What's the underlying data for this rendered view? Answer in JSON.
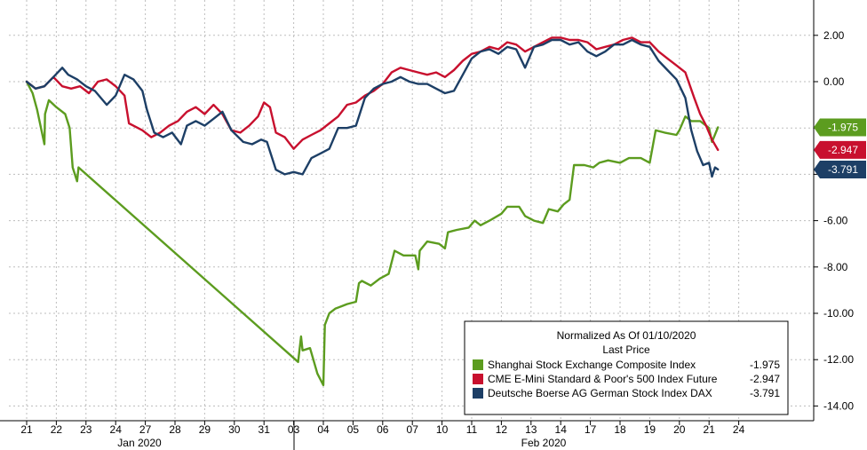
{
  "chart_data": {
    "type": "line",
    "ylim": [
      -14.5,
      3.5
    ],
    "y_ticks": [
      "2.00",
      "0.00",
      "-2.00",
      "-4.00",
      "-6.00",
      "-8.00",
      "-10.00",
      "-12.00",
      "-14.00"
    ],
    "y_tick_values": [
      2,
      0,
      -2,
      -4,
      -6,
      -8,
      -10,
      -12,
      -14
    ],
    "x_tick_labels": [
      "21",
      "22",
      "23",
      "24",
      "27",
      "28",
      "29",
      "30",
      "31",
      "03",
      "04",
      "05",
      "06",
      "07",
      "10",
      "11",
      "12",
      "13",
      "14",
      "17",
      "18",
      "19",
      "20",
      "21",
      "24"
    ],
    "month_labels": [
      "Jan 2020",
      "Feb 2020"
    ],
    "grid": true,
    "legend": {
      "placement": "bottom-right",
      "title_line1": "Normalized As Of 01/10/2020",
      "title_line2": "Last Price",
      "entries": [
        {
          "label": "Shanghai Stock Exchange Composite Index",
          "value": "-1.975"
        },
        {
          "label": "CME E-Mini Standard & Poor's 500 Index Future",
          "value": "-2.947"
        },
        {
          "label": "Deutsche Boerse AG German Stock Index DAX",
          "value": "-3.791"
        }
      ]
    },
    "series": [
      {
        "name": "Shanghai Stock Exchange Composite Index",
        "color": "#5c9c1f",
        "last_value": "-1.975",
        "points": [
          [
            0,
            0
          ],
          [
            0.2,
            -0.5
          ],
          [
            0.35,
            -1.2
          ],
          [
            0.6,
            -2.7
          ],
          [
            0.62,
            -1.4
          ],
          [
            0.75,
            -0.8
          ],
          [
            1.0,
            -1.1
          ],
          [
            1.3,
            -1.4
          ],
          [
            1.45,
            -2.0
          ],
          [
            1.55,
            -3.7
          ],
          [
            1.7,
            -4.3
          ],
          [
            1.75,
            -3.7
          ],
          [
            9.15,
            -12.1
          ],
          [
            9.25,
            -11.0
          ],
          [
            9.3,
            -11.6
          ],
          [
            9.55,
            -11.5
          ],
          [
            9.8,
            -12.6
          ],
          [
            10.0,
            -13.1
          ],
          [
            10.05,
            -10.5
          ],
          [
            10.2,
            -10.0
          ],
          [
            10.4,
            -9.8
          ],
          [
            10.6,
            -9.7
          ],
          [
            10.8,
            -9.6
          ],
          [
            11.1,
            -9.5
          ],
          [
            11.2,
            -8.7
          ],
          [
            11.3,
            -8.6
          ],
          [
            11.6,
            -8.8
          ],
          [
            11.9,
            -8.5
          ],
          [
            12.2,
            -8.3
          ],
          [
            12.4,
            -7.3
          ],
          [
            12.7,
            -7.5
          ],
          [
            13.1,
            -7.5
          ],
          [
            13.2,
            -8.1
          ],
          [
            13.25,
            -7.3
          ],
          [
            13.5,
            -6.9
          ],
          [
            13.9,
            -7.0
          ],
          [
            14.1,
            -7.2
          ],
          [
            14.2,
            -6.5
          ],
          [
            14.5,
            -6.4
          ],
          [
            14.9,
            -6.3
          ],
          [
            15.1,
            -6.0
          ],
          [
            15.3,
            -6.2
          ],
          [
            15.6,
            -6.0
          ],
          [
            16.0,
            -5.7
          ],
          [
            16.2,
            -5.4
          ],
          [
            16.6,
            -5.4
          ],
          [
            16.8,
            -5.8
          ],
          [
            17.1,
            -6.0
          ],
          [
            17.4,
            -6.1
          ],
          [
            17.6,
            -5.5
          ],
          [
            17.9,
            -5.6
          ],
          [
            18.1,
            -5.3
          ],
          [
            18.3,
            -5.1
          ],
          [
            18.45,
            -3.6
          ],
          [
            18.8,
            -3.6
          ],
          [
            19.1,
            -3.7
          ],
          [
            19.3,
            -3.5
          ],
          [
            19.6,
            -3.4
          ],
          [
            20.0,
            -3.5
          ],
          [
            20.3,
            -3.3
          ],
          [
            20.7,
            -3.3
          ],
          [
            21.0,
            -3.5
          ],
          [
            21.2,
            -2.1
          ],
          [
            21.5,
            -2.2
          ],
          [
            21.9,
            -2.3
          ],
          [
            22.0,
            -2.1
          ],
          [
            22.2,
            -1.5
          ],
          [
            22.4,
            -1.7
          ],
          [
            22.7,
            -1.7
          ],
          [
            23.0,
            -2.0
          ],
          [
            23.1,
            -2.6
          ],
          [
            23.3,
            -1.975
          ]
        ]
      },
      {
        "name": "CME E-Mini Standard & Poor's 500 Index Future",
        "color": "#c8102e",
        "last_value": "-2.947",
        "points": [
          [
            0,
            0
          ],
          [
            0.3,
            -0.3
          ],
          [
            0.6,
            -0.2
          ],
          [
            0.9,
            0.2
          ],
          [
            1.2,
            -0.2
          ],
          [
            1.5,
            -0.3
          ],
          [
            1.8,
            -0.2
          ],
          [
            2.1,
            -0.5
          ],
          [
            2.4,
            0.0
          ],
          [
            2.7,
            0.1
          ],
          [
            3.0,
            -0.2
          ],
          [
            3.3,
            -0.6
          ],
          [
            3.45,
            -1.8
          ],
          [
            3.6,
            -1.9
          ],
          [
            3.9,
            -2.1
          ],
          [
            4.2,
            -2.4
          ],
          [
            4.5,
            -2.2
          ],
          [
            4.8,
            -1.9
          ],
          [
            5.1,
            -1.7
          ],
          [
            5.4,
            -1.3
          ],
          [
            5.7,
            -1.1
          ],
          [
            6.0,
            -1.4
          ],
          [
            6.3,
            -1.0
          ],
          [
            6.6,
            -1.4
          ],
          [
            6.9,
            -2.1
          ],
          [
            7.2,
            -2.2
          ],
          [
            7.5,
            -1.9
          ],
          [
            7.8,
            -1.5
          ],
          [
            8.0,
            -0.9
          ],
          [
            8.2,
            -1.1
          ],
          [
            8.4,
            -2.2
          ],
          [
            8.7,
            -2.4
          ],
          [
            9.0,
            -2.9
          ],
          [
            9.3,
            -2.5
          ],
          [
            9.6,
            -2.3
          ],
          [
            9.9,
            -2.1
          ],
          [
            10.2,
            -1.8
          ],
          [
            10.5,
            -1.5
          ],
          [
            10.8,
            -1.0
          ],
          [
            11.1,
            -0.9
          ],
          [
            11.4,
            -0.6
          ],
          [
            11.7,
            -0.4
          ],
          [
            12.0,
            -0.1
          ],
          [
            12.3,
            0.4
          ],
          [
            12.6,
            0.6
          ],
          [
            12.9,
            0.5
          ],
          [
            13.2,
            0.4
          ],
          [
            13.5,
            0.3
          ],
          [
            13.8,
            0.4
          ],
          [
            14.1,
            0.2
          ],
          [
            14.4,
            0.5
          ],
          [
            14.7,
            0.9
          ],
          [
            15.0,
            1.2
          ],
          [
            15.3,
            1.3
          ],
          [
            15.6,
            1.5
          ],
          [
            15.9,
            1.4
          ],
          [
            16.2,
            1.7
          ],
          [
            16.5,
            1.6
          ],
          [
            16.8,
            1.3
          ],
          [
            17.1,
            1.5
          ],
          [
            17.4,
            1.7
          ],
          [
            17.7,
            1.9
          ],
          [
            18.0,
            1.9
          ],
          [
            18.3,
            1.8
          ],
          [
            18.6,
            1.8
          ],
          [
            18.9,
            1.7
          ],
          [
            19.2,
            1.4
          ],
          [
            19.5,
            1.5
          ],
          [
            19.8,
            1.6
          ],
          [
            20.1,
            1.8
          ],
          [
            20.4,
            1.9
          ],
          [
            20.7,
            1.7
          ],
          [
            21.0,
            1.7
          ],
          [
            21.3,
            1.3
          ],
          [
            21.6,
            1.0
          ],
          [
            21.9,
            0.7
          ],
          [
            22.2,
            0.4
          ],
          [
            22.5,
            -0.7
          ],
          [
            22.7,
            -1.4
          ],
          [
            22.9,
            -1.9
          ],
          [
            23.1,
            -2.5
          ],
          [
            23.3,
            -2.947
          ]
        ]
      },
      {
        "name": "Deutsche Boerse AG German Stock Index DAX",
        "color": "#1d3f66",
        "last_value": "-3.791",
        "points": [
          [
            0,
            0
          ],
          [
            0.3,
            -0.3
          ],
          [
            0.6,
            -0.2
          ],
          [
            0.9,
            0.2
          ],
          [
            1.2,
            0.6
          ],
          [
            1.4,
            0.3
          ],
          [
            1.7,
            0.1
          ],
          [
            2.0,
            -0.2
          ],
          [
            2.3,
            -0.4
          ],
          [
            2.7,
            -1.0
          ],
          [
            3.0,
            -0.6
          ],
          [
            3.3,
            0.3
          ],
          [
            3.6,
            0.1
          ],
          [
            3.9,
            -0.4
          ],
          [
            4.05,
            -1.2
          ],
          [
            4.3,
            -2.2
          ],
          [
            4.6,
            -2.4
          ],
          [
            4.9,
            -2.2
          ],
          [
            5.2,
            -2.7
          ],
          [
            5.4,
            -1.9
          ],
          [
            5.7,
            -1.7
          ],
          [
            6.0,
            -1.9
          ],
          [
            6.3,
            -1.6
          ],
          [
            6.6,
            -1.3
          ],
          [
            6.9,
            -2.1
          ],
          [
            7.3,
            -2.6
          ],
          [
            7.6,
            -2.7
          ],
          [
            7.9,
            -2.5
          ],
          [
            8.1,
            -2.6
          ],
          [
            8.4,
            -3.8
          ],
          [
            8.7,
            -4.0
          ],
          [
            9.0,
            -3.9
          ],
          [
            9.3,
            -4.0
          ],
          [
            9.6,
            -3.3
          ],
          [
            9.9,
            -3.1
          ],
          [
            10.2,
            -2.9
          ],
          [
            10.5,
            -2.0
          ],
          [
            10.8,
            -2.0
          ],
          [
            11.1,
            -1.9
          ],
          [
            11.4,
            -0.7
          ],
          [
            11.7,
            -0.3
          ],
          [
            12.0,
            -0.1
          ],
          [
            12.3,
            0.0
          ],
          [
            12.6,
            0.2
          ],
          [
            12.9,
            0.0
          ],
          [
            13.2,
            -0.1
          ],
          [
            13.5,
            -0.1
          ],
          [
            13.8,
            -0.3
          ],
          [
            14.1,
            -0.5
          ],
          [
            14.4,
            -0.4
          ],
          [
            14.7,
            0.3
          ],
          [
            15.0,
            1.0
          ],
          [
            15.3,
            1.3
          ],
          [
            15.6,
            1.4
          ],
          [
            15.9,
            1.2
          ],
          [
            16.2,
            1.5
          ],
          [
            16.5,
            1.4
          ],
          [
            16.8,
            0.6
          ],
          [
            17.1,
            1.5
          ],
          [
            17.4,
            1.6
          ],
          [
            17.7,
            1.8
          ],
          [
            18.0,
            1.8
          ],
          [
            18.3,
            1.6
          ],
          [
            18.6,
            1.7
          ],
          [
            18.9,
            1.3
          ],
          [
            19.2,
            1.1
          ],
          [
            19.5,
            1.3
          ],
          [
            19.8,
            1.6
          ],
          [
            20.1,
            1.6
          ],
          [
            20.4,
            1.8
          ],
          [
            20.7,
            1.6
          ],
          [
            21.0,
            1.5
          ],
          [
            21.3,
            0.9
          ],
          [
            21.6,
            0.5
          ],
          [
            21.9,
            0.1
          ],
          [
            22.2,
            -0.7
          ],
          [
            22.4,
            -2.1
          ],
          [
            22.6,
            -3.0
          ],
          [
            22.8,
            -3.6
          ],
          [
            23.0,
            -3.5
          ],
          [
            23.1,
            -4.1
          ],
          [
            23.2,
            -3.7
          ],
          [
            23.3,
            -3.791
          ]
        ]
      }
    ]
  }
}
